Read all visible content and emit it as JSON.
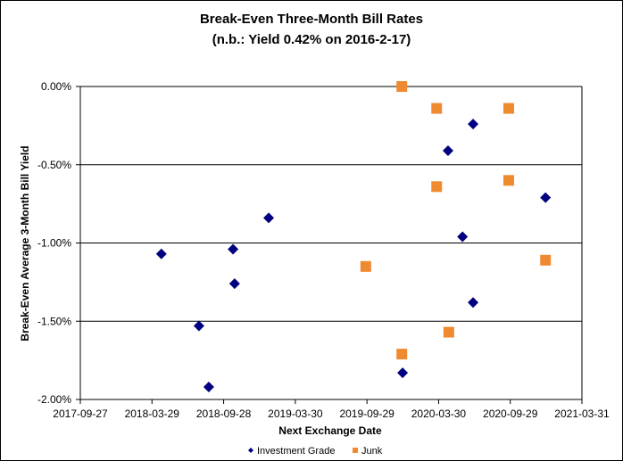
{
  "chart_data": {
    "type": "scatter",
    "title": "Break-Even Three-Month Bill Rates",
    "subtitle": "(n.b.: Yield 0.42% on 2016-2-17)",
    "xlabel": "Next Exchange Date",
    "ylabel": "Break-Even Average 3-Month  Bill Yield",
    "xlim": [
      "2017-09-27",
      "2021-03-31"
    ],
    "ylim": [
      -2.0,
      0.0
    ],
    "x_ticks": [
      "2017-09-27",
      "2018-03-29",
      "2018-09-28",
      "2019-03-30",
      "2019-09-29",
      "2020-03-30",
      "2020-09-29",
      "2021-03-31"
    ],
    "y_ticks": [
      {
        "value": 0.0,
        "label": "0.00%"
      },
      {
        "value": -0.5,
        "label": "-0.50%"
      },
      {
        "value": -1.0,
        "label": "-1.00%"
      },
      {
        "value": -1.5,
        "label": "-1.50%"
      },
      {
        "value": -2.0,
        "label": "-2.00%"
      }
    ],
    "grid": "horizontal",
    "legend_position": "bottom",
    "series": [
      {
        "name": "Investment Grade",
        "marker": "diamond",
        "color": "#000080",
        "points": [
          {
            "x": "2018-04-22",
            "y": -1.07
          },
          {
            "x": "2018-07-27",
            "y": -1.53
          },
          {
            "x": "2018-08-21",
            "y": -1.92
          },
          {
            "x": "2018-10-22",
            "y": -1.04
          },
          {
            "x": "2018-10-26",
            "y": -1.26
          },
          {
            "x": "2019-01-21",
            "y": -0.84
          },
          {
            "x": "2019-12-29",
            "y": -1.83
          },
          {
            "x": "2020-04-23",
            "y": -0.41
          },
          {
            "x": "2020-05-30",
            "y": -0.96
          },
          {
            "x": "2020-06-26",
            "y": -0.24
          },
          {
            "x": "2020-06-26",
            "y": -1.38
          },
          {
            "x": "2020-12-28",
            "y": -0.71
          }
        ]
      },
      {
        "name": "Junk",
        "marker": "square",
        "color": "#F08A30",
        "points": [
          {
            "x": "2019-09-26",
            "y": -1.15
          },
          {
            "x": "2019-12-27",
            "y": 0.0
          },
          {
            "x": "2019-12-27",
            "y": -1.71
          },
          {
            "x": "2020-03-25",
            "y": -0.14
          },
          {
            "x": "2020-03-25",
            "y": -0.64
          },
          {
            "x": "2020-04-25",
            "y": -1.57
          },
          {
            "x": "2020-09-25",
            "y": -0.14
          },
          {
            "x": "2020-09-25",
            "y": -0.6
          },
          {
            "x": "2020-12-28",
            "y": -1.11
          }
        ]
      }
    ]
  }
}
